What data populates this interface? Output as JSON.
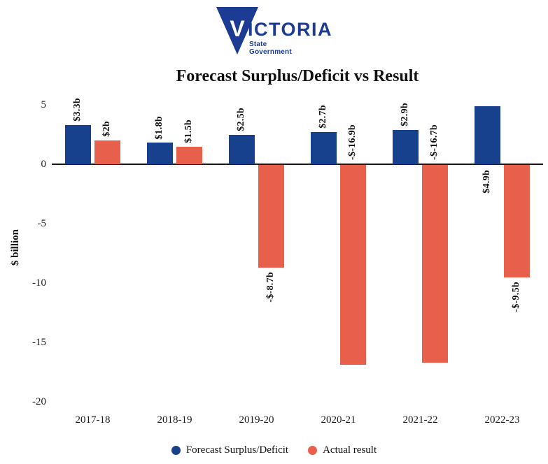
{
  "logo": {
    "v": "V",
    "wordmark_rest": "ICTORIA",
    "subtitle_line1": "State",
    "subtitle_line2": "Government",
    "navy": "#1c3c94"
  },
  "title": "Forecast Surplus/Deficit vs Result",
  "chart_data": {
    "type": "bar",
    "title": "Forecast Surplus/Deficit vs Result",
    "categories": [
      "2017-18",
      "2018-19",
      "2019-20",
      "2020-21",
      "2021-22",
      "2022-23"
    ],
    "series": [
      {
        "name": "Forecast Surplus/Deficit",
        "color": "#17418c",
        "values": [
          3.3,
          1.8,
          2.5,
          2.7,
          2.9,
          4.9
        ],
        "data_labels": [
          "$3.3b",
          "$1.8b",
          "$2.5b",
          "$2.7b",
          "$2.9b",
          "$4.9b"
        ]
      },
      {
        "name": "Actual result",
        "color": "#e8604c",
        "values": [
          2,
          1.5,
          -8.7,
          -16.9,
          -16.7,
          -9.5
        ],
        "data_labels": [
          "$2b",
          "$1.5b",
          "-$-8.7b",
          "-$-16.9b",
          "-$-16.7b",
          "-$-9.5b"
        ]
      }
    ],
    "xlabel": "",
    "ylabel": "$ billion",
    "ylim": [
      -20,
      5
    ],
    "yticks": [
      "5",
      "0",
      "-5",
      "-10",
      "-15",
      "-20"
    ],
    "grid": false,
    "legend_position": "bottom",
    "axis_color": "#1a1a1a"
  }
}
